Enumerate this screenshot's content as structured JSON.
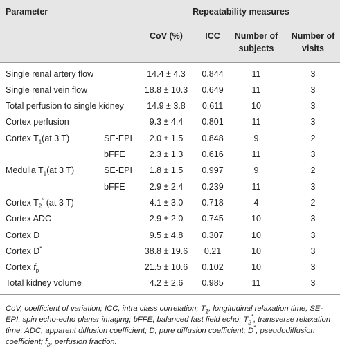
{
  "table": {
    "header": {
      "parameter": "Parameter",
      "group": "Repeatability measures",
      "columns": [
        "CoV (%)",
        "ICC",
        "Number of subjects",
        "Number of visits"
      ]
    },
    "rows": [
      {
        "parameter": [
          {
            "text": "Single renal artery flow"
          }
        ],
        "method": null,
        "cells": [
          "14.4 ± 4.3",
          0.844,
          11,
          3
        ]
      },
      {
        "parameter": [
          {
            "text": "Single renal vein flow"
          }
        ],
        "method": null,
        "cells": [
          "18.8 ± 10.3",
          0.649,
          11,
          3
        ]
      },
      {
        "parameter": [
          {
            "text": "Total perfusion to single kidney"
          }
        ],
        "method": null,
        "cells": [
          "14.9 ± 3.8",
          0.611,
          10,
          3
        ]
      },
      {
        "parameter": [
          {
            "text": "Cortex perfusion"
          }
        ],
        "method": null,
        "cells": [
          "9.3 ± 4.4",
          0.801,
          11,
          3
        ]
      },
      {
        "parameter": [
          {
            "text": "Cortex T"
          },
          {
            "sub": "1"
          },
          {
            "text": "(at 3 T)"
          }
        ],
        "method": "SE-EPI",
        "cells": [
          "2.0 ± 1.5",
          0.848,
          9,
          2
        ]
      },
      {
        "parameter": null,
        "method": "bFFE",
        "cells": [
          "2.3 ± 1.3",
          0.616,
          11,
          3
        ]
      },
      {
        "parameter": [
          {
            "text": "Medulla T"
          },
          {
            "sub": "1"
          },
          {
            "text": "(at 3 T)"
          }
        ],
        "method": "SE-EPI",
        "cells": [
          "1.8 ± 1.5",
          0.997,
          9,
          2
        ]
      },
      {
        "parameter": null,
        "method": "bFFE",
        "cells": [
          "2.9 ± 2.4",
          0.239,
          11,
          3
        ]
      },
      {
        "parameter": [
          {
            "text": "Cortex T"
          },
          {
            "sub": "2"
          },
          {
            "sup": "*"
          },
          {
            "text": " (at 3 T)"
          }
        ],
        "method": null,
        "cells": [
          "4.1 ± 3.0",
          0.718,
          4,
          2
        ]
      },
      {
        "parameter": [
          {
            "text": "Cortex ADC"
          }
        ],
        "method": null,
        "cells": [
          "2.9 ± 2.0",
          0.745,
          10,
          3
        ]
      },
      {
        "parameter": [
          {
            "text": "Cortex D"
          }
        ],
        "method": null,
        "cells": [
          "9.5 ± 4.8",
          0.307,
          10,
          3
        ]
      },
      {
        "parameter": [
          {
            "text": "Cortex D"
          },
          {
            "sup": "*"
          }
        ],
        "method": null,
        "cells": [
          "38.8 ± 19.6",
          0.21,
          10,
          3
        ]
      },
      {
        "parameter": [
          {
            "text": "Cortex "
          },
          {
            "em": "f"
          },
          {
            "sub": "p"
          }
        ],
        "method": null,
        "cells": [
          "21.5 ± 10.6",
          0.102,
          10,
          3
        ]
      },
      {
        "parameter": [
          {
            "text": "Total kidney volume"
          }
        ],
        "method": null,
        "cells": [
          "4.2 ± 2.6",
          0.985,
          11,
          3
        ]
      }
    ],
    "footnote": [
      {
        "text": "CoV, coefficient of variation; ICC, intra class correlation; T"
      },
      {
        "sub": "1"
      },
      {
        "text": ", longitudinal relaxation time; SE-EPI, spin echo-echo planar imaging; bFFE, balanced fast field echo; T"
      },
      {
        "sub": "2"
      },
      {
        "sup": "*"
      },
      {
        "text": ", transverse relaxation time; ADC, apparent diffusion coefficient; D, pure diffusion coefficient; D"
      },
      {
        "sup": "*"
      },
      {
        "text": ", pseudodiffusion coefficient; f"
      },
      {
        "sub": "p"
      },
      {
        "text": ", perfusion fraction."
      }
    ]
  }
}
